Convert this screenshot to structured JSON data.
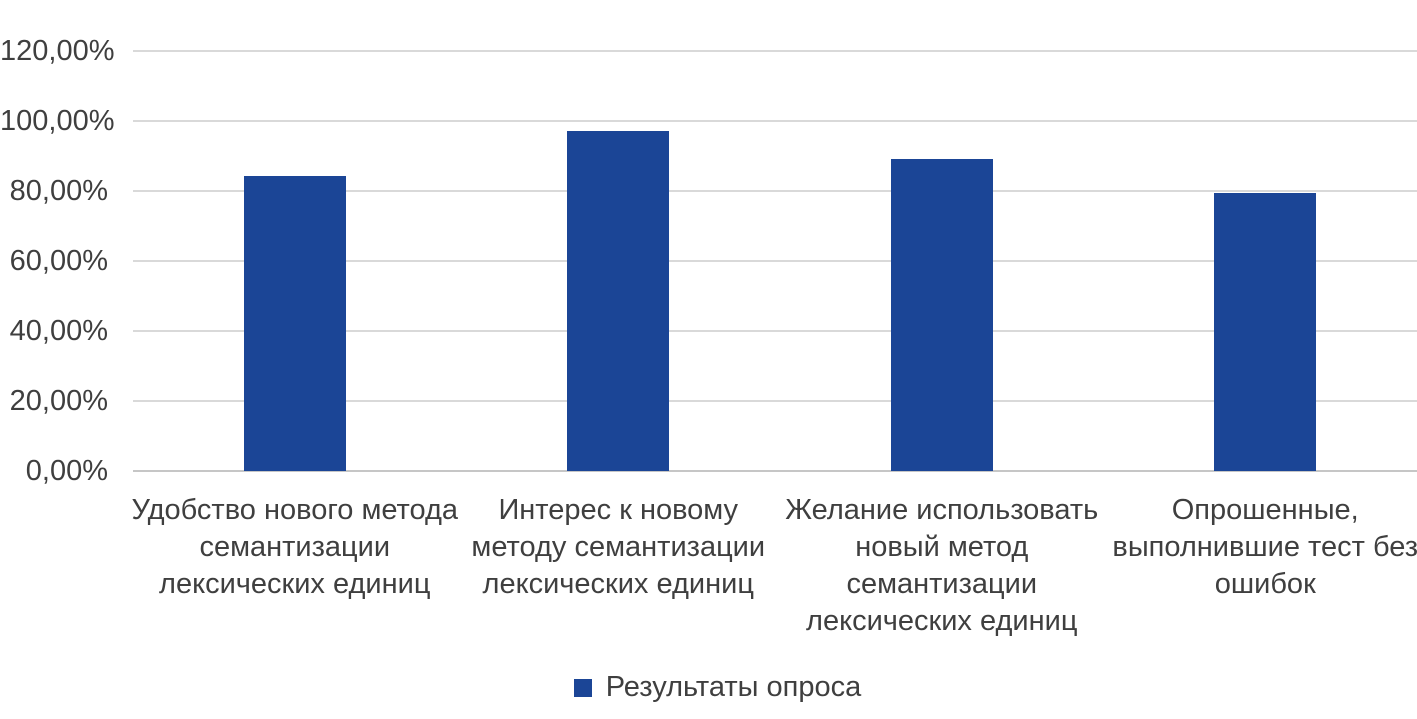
{
  "chart_data": {
    "type": "bar",
    "title": "",
    "categories": [
      "Удобство нового метода семантизации лексических единиц",
      "Интерес к новому методу семантизации лексических единиц",
      "Желание использовать новый метод семантизации лексических единиц",
      "Опрошенные, выполнившие тест без ошибок"
    ],
    "category_lines": [
      [
        "Удобство нового метода",
        "семантизации",
        "лексических единиц"
      ],
      [
        "Интерес к новому",
        "методу семантизации",
        "лексических единиц"
      ],
      [
        "Желание использовать",
        "новый метод",
        "семантизации",
        "лексических единиц"
      ],
      [
        "Опрошенные,",
        "выполнившие тест без",
        "ошибок"
      ]
    ],
    "series": [
      {
        "name": "Результаты опроса",
        "values": [
          84.2,
          97.2,
          89.1,
          79.4
        ]
      }
    ],
    "ylim": [
      0,
      120
    ],
    "ytick_values": [
      0,
      20,
      40,
      60,
      80,
      100,
      120
    ],
    "ytick_labels": [
      "0,00%",
      "20,00%",
      "40,00%",
      "60,00%",
      "80,00%",
      "100,00%",
      "120,00%"
    ],
    "grid": "horizontal",
    "legend_position": "bottom",
    "colors": {
      "bar": "#1B4596",
      "gridline": "#D9D9D9",
      "axis_line": "#C6C6C6",
      "text": "#3F3F3F",
      "background": "#FFFFFF"
    }
  }
}
